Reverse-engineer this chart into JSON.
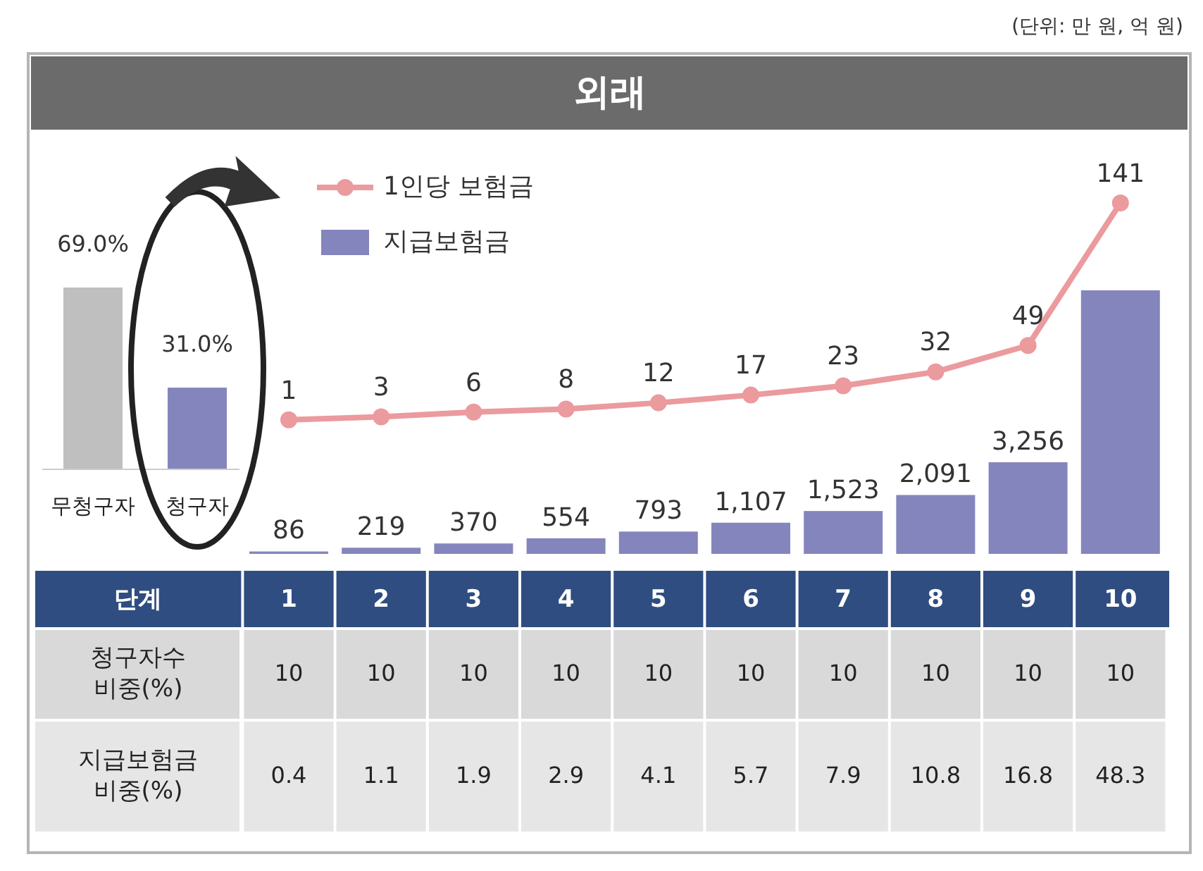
{
  "chart_data": [
    {
      "type": "bar",
      "categories": [
        "무청구자",
        "청구자"
      ],
      "values": [
        69.0,
        31.0
      ],
      "colors": [
        "#bfbfbf",
        "#8585bd"
      ],
      "value_labels": [
        "69.0%",
        "31.0%"
      ]
    },
    {
      "type": "bar",
      "title": "외래",
      "annotations": [
        "(단위: 만 원, 억 원)"
      ],
      "xlabel": "단계",
      "categories": [
        "1",
        "2",
        "3",
        "4",
        "5",
        "6",
        "7",
        "8",
        "9",
        "10"
      ],
      "legend": "top left",
      "series": [
        {
          "name": "지급보험금",
          "type": "bar",
          "color": "#8585bd",
          "values": [
            86,
            219,
            370,
            554,
            793,
            1107,
            1523,
            2091,
            3256,
            9360
          ],
          "value_labels": [
            "86",
            "219",
            "370",
            "554",
            "793",
            "1,107",
            "1,523",
            "2,091",
            "3,256",
            null
          ]
        },
        {
          "name": "1인당 보험금",
          "type": "line",
          "axis": "y2",
          "color": "#eb9a9e",
          "marker": "circle",
          "data_labels": true,
          "values": [
            1,
            3,
            6,
            8,
            12,
            17,
            23,
            32,
            49,
            141
          ]
        }
      ]
    },
    {
      "type": "heatmap",
      "categories": [
        null,
        null,
        null,
        null,
        null,
        null,
        null,
        null,
        null,
        null
      ],
      "y_categories": [
        "청구자수 비중(%)",
        "지급보험금 비중(%)"
      ],
      "cells": [
        [
          10,
          10,
          10,
          10,
          10,
          10,
          10,
          10,
          10,
          10
        ],
        [
          0.4,
          1.1,
          1.9,
          2.9,
          4.1,
          5.7,
          7.9,
          10.8,
          16.8,
          48.3
        ]
      ],
      "data_labels": true
    }
  ]
}
